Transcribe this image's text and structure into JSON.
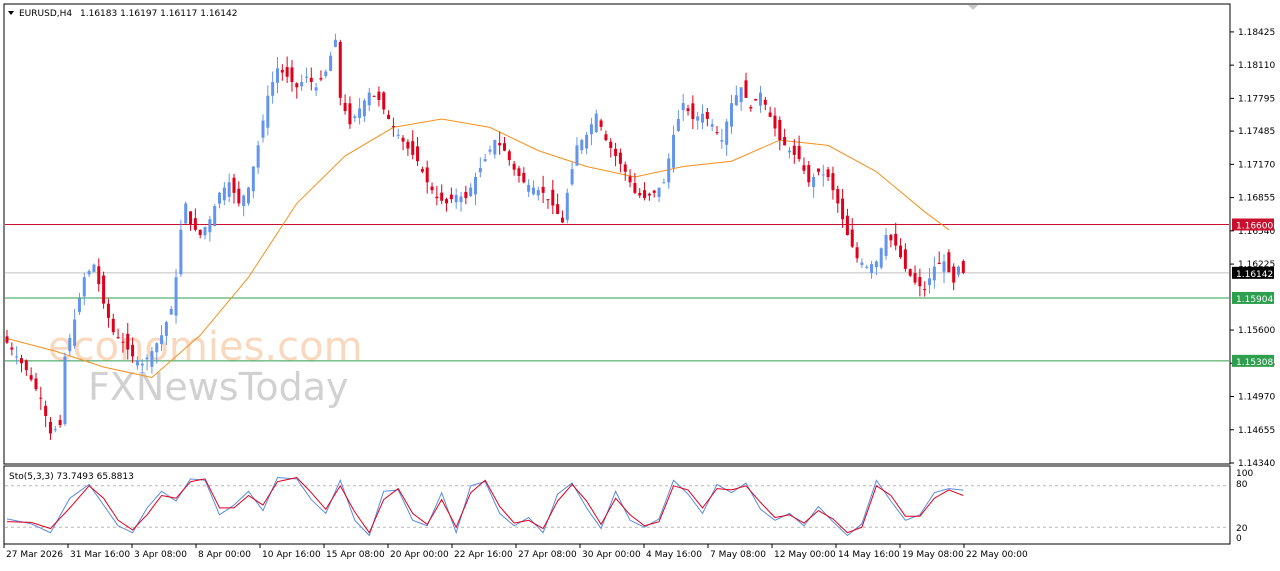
{
  "header": {
    "symbol": "EURUSD,H4",
    "ohlc": "1.16183 1.16197 1.16117 1.16142"
  },
  "watermark": {
    "line1": "economies.com",
    "line2": "FXNewsToday"
  },
  "indicator": {
    "label": "Sto(5,3,3) 73.7493 65.8813",
    "levels": [
      "100",
      "80",
      "20",
      "0"
    ]
  },
  "colors": {
    "bull": "#6495ed",
    "bear": "#e0001b",
    "ma": "#f5901e",
    "resistance": "#c8102e",
    "support": "#2e9e4f",
    "current": "#000000",
    "sto_main": "#5a8be0",
    "sto_signal": "#e0001b"
  },
  "chart_data": {
    "type": "candlestick",
    "symbol": "EURUSD",
    "timeframe": "H4",
    "ylim": [
      1.1434,
      1.1868
    ],
    "price_ticks": [
      "1.18425",
      "1.18110",
      "1.17795",
      "1.17485",
      "1.17170",
      "1.16855",
      "1.16540",
      "1.16225",
      "1.15600",
      "1.15285",
      "1.14970",
      "1.14655",
      "1.14340"
    ],
    "x_tick_labels": [
      "27 Mar 2026",
      "31 Mar 16:00",
      "3 Apr 08:00",
      "8 Apr 00:00",
      "10 Apr 16:00",
      "15 Apr 08:00",
      "20 Apr 00:00",
      "22 Apr 16:00",
      "27 Apr 08:00",
      "30 Apr 00:00",
      "4 May 16:00",
      "7 May 08:00",
      "12 May 00:00",
      "14 May 16:00",
      "19 May 08:00",
      "22 May 00:00"
    ],
    "horizontal_levels": [
      {
        "label": "1.16600",
        "value": 1.166,
        "role": "resistance"
      },
      {
        "label": "1.16142",
        "value": 1.16142,
        "role": "current"
      },
      {
        "label": "1.15904",
        "value": 1.15904,
        "role": "support"
      },
      {
        "label": "1.15308",
        "value": 1.15308,
        "role": "support"
      }
    ],
    "close_path": [
      [
        0,
        1.1548
      ],
      [
        4,
        1.1522
      ],
      [
        7,
        1.1495
      ],
      [
        9,
        1.1462
      ],
      [
        11,
        1.147
      ],
      [
        12,
        1.1535
      ],
      [
        14,
        1.157
      ],
      [
        16,
        1.161
      ],
      [
        18,
        1.1622
      ],
      [
        20,
        1.1585
      ],
      [
        22,
        1.1558
      ],
      [
        24,
        1.1548
      ],
      [
        26,
        1.1535
      ],
      [
        28,
        1.1528
      ],
      [
        30,
        1.154
      ],
      [
        32,
        1.1555
      ],
      [
        34,
        1.158
      ],
      [
        35,
        1.161
      ],
      [
        36,
        1.1655
      ],
      [
        37,
        1.168
      ],
      [
        38,
        1.166
      ],
      [
        40,
        1.165
      ],
      [
        42,
        1.1665
      ],
      [
        44,
        1.169
      ],
      [
        46,
        1.17
      ],
      [
        48,
        1.168
      ],
      [
        50,
        1.1695
      ],
      [
        52,
        1.1735
      ],
      [
        54,
        1.1782
      ],
      [
        56,
        1.1808
      ],
      [
        58,
        1.18
      ],
      [
        60,
        1.179
      ],
      [
        62,
        1.18
      ],
      [
        64,
        1.179
      ],
      [
        66,
        1.1805
      ],
      [
        68,
        1.1835
      ],
      [
        69,
        1.178
      ],
      [
        71,
        1.1755
      ],
      [
        73,
        1.177
      ],
      [
        75,
        1.1785
      ],
      [
        77,
        1.1778
      ],
      [
        79,
        1.176
      ],
      [
        81,
        1.1745
      ],
      [
        83,
        1.1732
      ],
      [
        85,
        1.172
      ],
      [
        87,
        1.17
      ],
      [
        89,
        1.1685
      ],
      [
        91,
        1.168
      ],
      [
        93,
        1.1688
      ],
      [
        95,
        1.1685
      ],
      [
        97,
        1.1705
      ],
      [
        99,
        1.1722
      ],
      [
        101,
        1.174
      ],
      [
        103,
        1.173
      ],
      [
        105,
        1.1712
      ],
      [
        107,
        1.17
      ],
      [
        109,
        1.1695
      ],
      [
        111,
        1.169
      ],
      [
        113,
        1.1678
      ],
      [
        115,
        1.1662
      ],
      [
        116,
        1.169
      ],
      [
        118,
        1.1735
      ],
      [
        120,
        1.1745
      ],
      [
        122,
        1.1765
      ],
      [
        124,
        1.174
      ],
      [
        126,
        1.1725
      ],
      [
        128,
        1.171
      ],
      [
        130,
        1.169
      ],
      [
        132,
        1.1685
      ],
      [
        134,
        1.169
      ],
      [
        136,
        1.17
      ],
      [
        138,
        1.1745
      ],
      [
        140,
        1.1775
      ],
      [
        142,
        1.176
      ],
      [
        144,
        1.1765
      ],
      [
        146,
        1.1755
      ],
      [
        148,
        1.174
      ],
      [
        150,
        1.1775
      ],
      [
        152,
        1.179
      ],
      [
        154,
        1.177
      ],
      [
        156,
        1.1785
      ],
      [
        158,
        1.1762
      ],
      [
        160,
        1.174
      ],
      [
        162,
        1.173
      ],
      [
        164,
        1.1722
      ],
      [
        166,
        1.17
      ],
      [
        168,
        1.171
      ],
      [
        170,
        1.1705
      ],
      [
        172,
        1.168
      ],
      [
        174,
        1.165
      ],
      [
        176,
        1.1628
      ],
      [
        178,
        1.162
      ],
      [
        180,
        1.1625
      ],
      [
        182,
        1.165
      ],
      [
        184,
        1.164
      ],
      [
        186,
        1.1618
      ],
      [
        188,
        1.1605
      ],
      [
        190,
        1.1598
      ],
      [
        192,
        1.162
      ],
      [
        194,
        1.1625
      ],
      [
        196,
        1.1605
      ],
      [
        197,
        1.162
      ],
      [
        198,
        1.16142
      ]
    ],
    "moving_average": [
      [
        0,
        1.1552
      ],
      [
        10,
        1.154
      ],
      [
        20,
        1.1525
      ],
      [
        30,
        1.1515
      ],
      [
        40,
        1.1555
      ],
      [
        50,
        1.161
      ],
      [
        60,
        1.168
      ],
      [
        70,
        1.1725
      ],
      [
        80,
        1.1752
      ],
      [
        90,
        1.176
      ],
      [
        100,
        1.1752
      ],
      [
        110,
        1.173
      ],
      [
        120,
        1.1715
      ],
      [
        130,
        1.1705
      ],
      [
        140,
        1.1715
      ],
      [
        150,
        1.172
      ],
      [
        160,
        1.174
      ],
      [
        170,
        1.1735
      ],
      [
        180,
        1.171
      ],
      [
        190,
        1.1672
      ],
      [
        195,
        1.1655
      ]
    ],
    "stochastic": {
      "name": "Sto(5,3,3)",
      "main_last": 73.7493,
      "signal_last": 65.8813,
      "ylim": [
        0,
        100
      ],
      "levels": [
        80,
        20
      ],
      "main_path": [
        [
          0,
          32
        ],
        [
          5,
          25
        ],
        [
          9,
          12
        ],
        [
          13,
          62
        ],
        [
          17,
          82
        ],
        [
          20,
          52
        ],
        [
          23,
          22
        ],
        [
          26,
          12
        ],
        [
          29,
          48
        ],
        [
          32,
          72
        ],
        [
          35,
          58
        ],
        [
          38,
          90
        ],
        [
          41,
          88
        ],
        [
          44,
          38
        ],
        [
          47,
          52
        ],
        [
          50,
          72
        ],
        [
          53,
          44
        ],
        [
          56,
          92
        ],
        [
          60,
          90
        ],
        [
          63,
          60
        ],
        [
          66,
          40
        ],
        [
          69,
          88
        ],
        [
          72,
          30
        ],
        [
          75,
          8
        ],
        [
          78,
          72
        ],
        [
          81,
          74
        ],
        [
          84,
          30
        ],
        [
          87,
          22
        ],
        [
          90,
          70
        ],
        [
          93,
          12
        ],
        [
          96,
          80
        ],
        [
          99,
          86
        ],
        [
          102,
          40
        ],
        [
          105,
          22
        ],
        [
          108,
          34
        ],
        [
          111,
          12
        ],
        [
          114,
          68
        ],
        [
          117,
          84
        ],
        [
          120,
          48
        ],
        [
          123,
          18
        ],
        [
          126,
          72
        ],
        [
          129,
          30
        ],
        [
          132,
          20
        ],
        [
          135,
          32
        ],
        [
          138,
          88
        ],
        [
          141,
          68
        ],
        [
          144,
          40
        ],
        [
          147,
          82
        ],
        [
          150,
          70
        ],
        [
          153,
          84
        ],
        [
          156,
          46
        ],
        [
          159,
          30
        ],
        [
          162,
          40
        ],
        [
          165,
          22
        ],
        [
          168,
          50
        ],
        [
          171,
          28
        ],
        [
          174,
          8
        ],
        [
          177,
          25
        ],
        [
          180,
          88
        ],
        [
          183,
          58
        ],
        [
          186,
          30
        ],
        [
          189,
          38
        ],
        [
          192,
          70
        ],
        [
          195,
          76
        ],
        [
          198,
          73.75
        ]
      ],
      "signal_path": [
        [
          0,
          28
        ],
        [
          5,
          27
        ],
        [
          9,
          18
        ],
        [
          13,
          48
        ],
        [
          17,
          80
        ],
        [
          20,
          62
        ],
        [
          23,
          30
        ],
        [
          26,
          16
        ],
        [
          29,
          38
        ],
        [
          32,
          66
        ],
        [
          35,
          62
        ],
        [
          38,
          86
        ],
        [
          41,
          90
        ],
        [
          44,
          48
        ],
        [
          47,
          48
        ],
        [
          50,
          66
        ],
        [
          53,
          52
        ],
        [
          56,
          86
        ],
        [
          60,
          92
        ],
        [
          63,
          70
        ],
        [
          66,
          46
        ],
        [
          69,
          80
        ],
        [
          72,
          42
        ],
        [
          75,
          12
        ],
        [
          78,
          60
        ],
        [
          81,
          76
        ],
        [
          84,
          40
        ],
        [
          87,
          24
        ],
        [
          90,
          60
        ],
        [
          93,
          20
        ],
        [
          96,
          70
        ],
        [
          99,
          88
        ],
        [
          102,
          50
        ],
        [
          105,
          26
        ],
        [
          108,
          30
        ],
        [
          111,
          18
        ],
        [
          114,
          58
        ],
        [
          117,
          82
        ],
        [
          120,
          58
        ],
        [
          123,
          24
        ],
        [
          126,
          62
        ],
        [
          129,
          38
        ],
        [
          132,
          22
        ],
        [
          135,
          28
        ],
        [
          138,
          80
        ],
        [
          141,
          74
        ],
        [
          144,
          48
        ],
        [
          147,
          76
        ],
        [
          150,
          74
        ],
        [
          153,
          80
        ],
        [
          156,
          56
        ],
        [
          159,
          34
        ],
        [
          162,
          38
        ],
        [
          165,
          26
        ],
        [
          168,
          44
        ],
        [
          171,
          32
        ],
        [
          174,
          12
        ],
        [
          177,
          20
        ],
        [
          180,
          80
        ],
        [
          183,
          66
        ],
        [
          186,
          36
        ],
        [
          189,
          36
        ],
        [
          192,
          62
        ],
        [
          195,
          74
        ],
        [
          198,
          65.88
        ]
      ]
    }
  }
}
